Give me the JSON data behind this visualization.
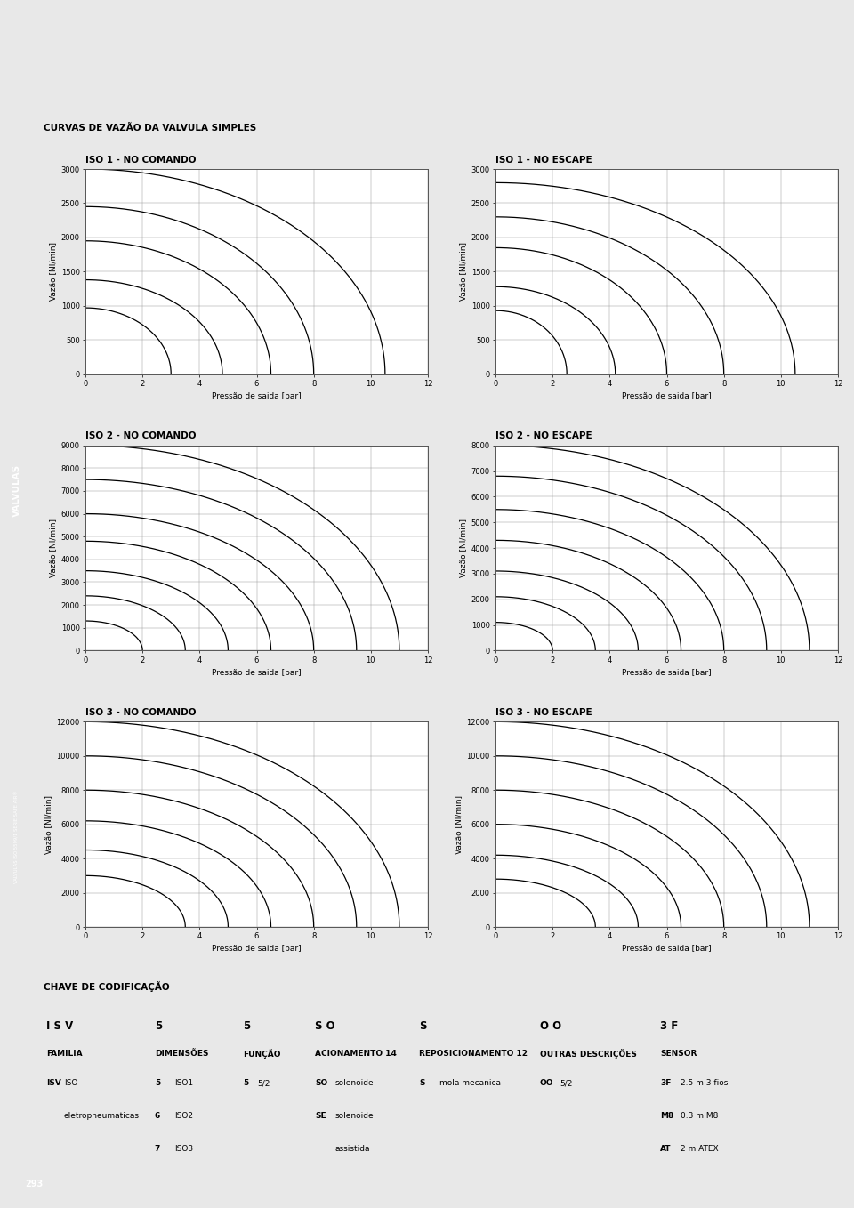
{
  "page_bg": "#e8e8e8",
  "content_bg": "#ffffff",
  "chart_bg": "#f0f0f0",
  "header_bg": "#c0c0c0",
  "orange_bar": "#e8732a",
  "sidebar_label": "VALVULAS",
  "sidebar_sublabel": "VALVULAS ISO 5599/1 SERIE SAFE AIR®",
  "main_title": "CURVAS DE VAZÃO DA VALVULA SIMPLES",
  "plots": [
    {
      "title": "ISO 1 - NO COMANDO",
      "ylabel": "Vazão [Nl/min]",
      "xlabel": "Pressão de saida [bar]",
      "ylim": [
        0,
        3000
      ],
      "yticks": [
        0,
        500,
        1000,
        1500,
        2000,
        2500,
        3000
      ],
      "xlim": [
        0,
        12
      ],
      "xticks": [
        0,
        2,
        4,
        6,
        8,
        10,
        12
      ],
      "curves": [
        {
          "max_x": 10.5,
          "max_y": 3000
        },
        {
          "max_x": 8.0,
          "max_y": 2450
        },
        {
          "max_x": 6.5,
          "max_y": 1950
        },
        {
          "max_x": 4.8,
          "max_y": 1380
        },
        {
          "max_x": 3.0,
          "max_y": 970
        }
      ]
    },
    {
      "title": "ISO 1 - NO ESCAPE",
      "ylabel": "Vazão [Nl/min]",
      "xlabel": "Pressão de saida [bar]",
      "ylim": [
        0,
        3000
      ],
      "yticks": [
        0,
        500,
        1000,
        1500,
        2000,
        2500,
        3000
      ],
      "xlim": [
        0,
        12
      ],
      "xticks": [
        0,
        2,
        4,
        6,
        8,
        10,
        12
      ],
      "curves": [
        {
          "max_x": 10.5,
          "max_y": 2800
        },
        {
          "max_x": 8.0,
          "max_y": 2300
        },
        {
          "max_x": 6.0,
          "max_y": 1850
        },
        {
          "max_x": 4.2,
          "max_y": 1280
        },
        {
          "max_x": 2.5,
          "max_y": 930
        }
      ]
    },
    {
      "title": "ISO 2 - NO COMANDO",
      "ylabel": "Vazão [Nl/min]",
      "xlabel": "Pressão de saida [bar]",
      "ylim": [
        0,
        9000
      ],
      "yticks": [
        0,
        1000,
        2000,
        3000,
        4000,
        5000,
        6000,
        7000,
        8000,
        9000
      ],
      "xlim": [
        0,
        12
      ],
      "xticks": [
        0,
        2,
        4,
        6,
        8,
        10,
        12
      ],
      "curves": [
        {
          "max_x": 11.0,
          "max_y": 9000
        },
        {
          "max_x": 9.5,
          "max_y": 7500
        },
        {
          "max_x": 8.0,
          "max_y": 6000
        },
        {
          "max_x": 6.5,
          "max_y": 4800
        },
        {
          "max_x": 5.0,
          "max_y": 3500
        },
        {
          "max_x": 3.5,
          "max_y": 2400
        },
        {
          "max_x": 2.0,
          "max_y": 1300
        }
      ]
    },
    {
      "title": "ISO 2 - NO ESCAPE",
      "ylabel": "Vazão [Nl/min]",
      "xlabel": "Pressão de saida [bar]",
      "ylim": [
        0,
        8000
      ],
      "yticks": [
        0,
        1000,
        2000,
        3000,
        4000,
        5000,
        6000,
        7000,
        8000
      ],
      "xlim": [
        0,
        12
      ],
      "xticks": [
        0,
        2,
        4,
        6,
        8,
        10,
        12
      ],
      "curves": [
        {
          "max_x": 11.0,
          "max_y": 8000
        },
        {
          "max_x": 9.5,
          "max_y": 6800
        },
        {
          "max_x": 8.0,
          "max_y": 5500
        },
        {
          "max_x": 6.5,
          "max_y": 4300
        },
        {
          "max_x": 5.0,
          "max_y": 3100
        },
        {
          "max_x": 3.5,
          "max_y": 2100
        },
        {
          "max_x": 2.0,
          "max_y": 1100
        }
      ]
    },
    {
      "title": "ISO 3 - NO COMANDO",
      "ylabel": "Vazão [Nl/min]",
      "xlabel": "Pressão de saida [bar]",
      "ylim": [
        0,
        12000
      ],
      "yticks": [
        0,
        2000,
        4000,
        6000,
        8000,
        10000,
        12000
      ],
      "xlim": [
        0,
        12
      ],
      "xticks": [
        0,
        2,
        4,
        6,
        8,
        10,
        12
      ],
      "curves": [
        {
          "max_x": 11.0,
          "max_y": 12000
        },
        {
          "max_x": 9.5,
          "max_y": 10000
        },
        {
          "max_x": 8.0,
          "max_y": 8000
        },
        {
          "max_x": 6.5,
          "max_y": 6200
        },
        {
          "max_x": 5.0,
          "max_y": 4500
        },
        {
          "max_x": 3.5,
          "max_y": 3000
        }
      ]
    },
    {
      "title": "ISO 3 - NO ESCAPE",
      "ylabel": "Vazão [Nl/min]",
      "xlabel": "Pressão de saida [bar]",
      "ylim": [
        0,
        12000
      ],
      "yticks": [
        0,
        2000,
        4000,
        6000,
        8000,
        10000,
        12000
      ],
      "xlim": [
        0,
        12
      ],
      "xticks": [
        0,
        2,
        4,
        6,
        8,
        10,
        12
      ],
      "curves": [
        {
          "max_x": 11.0,
          "max_y": 12000
        },
        {
          "max_x": 9.5,
          "max_y": 10000
        },
        {
          "max_x": 8.0,
          "max_y": 8000
        },
        {
          "max_x": 6.5,
          "max_y": 6000
        },
        {
          "max_x": 5.0,
          "max_y": 4200
        },
        {
          "max_x": 3.5,
          "max_y": 2800
        }
      ]
    }
  ],
  "codif_title": "CHAVE DE CODIFICAÇÃO",
  "codif_columns": [
    {
      "header_code": "I S V",
      "header_label": "FAMILIA",
      "rows": [
        [
          "ISV",
          "ISO"
        ],
        [
          "",
          "eletropneumaticas"
        ]
      ]
    },
    {
      "header_code": "5",
      "header_label": "DIMENSÕES",
      "rows": [
        [
          "5",
          "ISO1"
        ],
        [
          "6",
          "ISO2"
        ],
        [
          "7",
          "ISO3"
        ]
      ]
    },
    {
      "header_code": "5",
      "header_label": "FUNÇÃO",
      "rows": [
        [
          "5",
          "5/2"
        ]
      ]
    },
    {
      "header_code": "S O",
      "header_label": "ACIONAMENTO 14",
      "rows": [
        [
          "SO",
          "solenoide"
        ],
        [
          "SE",
          "solenoide"
        ],
        [
          "",
          "assistida"
        ]
      ]
    },
    {
      "header_code": "S",
      "header_label": "REPOSICIONAMENTO 12",
      "rows": [
        [
          "S",
          "mola mecanica"
        ]
      ]
    },
    {
      "header_code": "O O",
      "header_label": "OUTRAS DESCRIÇÕES",
      "rows": [
        [
          "OO",
          "5/2"
        ]
      ]
    },
    {
      "header_code": "3 F",
      "header_label": "SENSOR",
      "rows": [
        [
          "3F",
          "2.5 m 3 fios"
        ],
        [
          "M8",
          "0.3 m M8"
        ],
        [
          "AT",
          "2 m ATEX"
        ]
      ]
    }
  ],
  "page_number": "293"
}
